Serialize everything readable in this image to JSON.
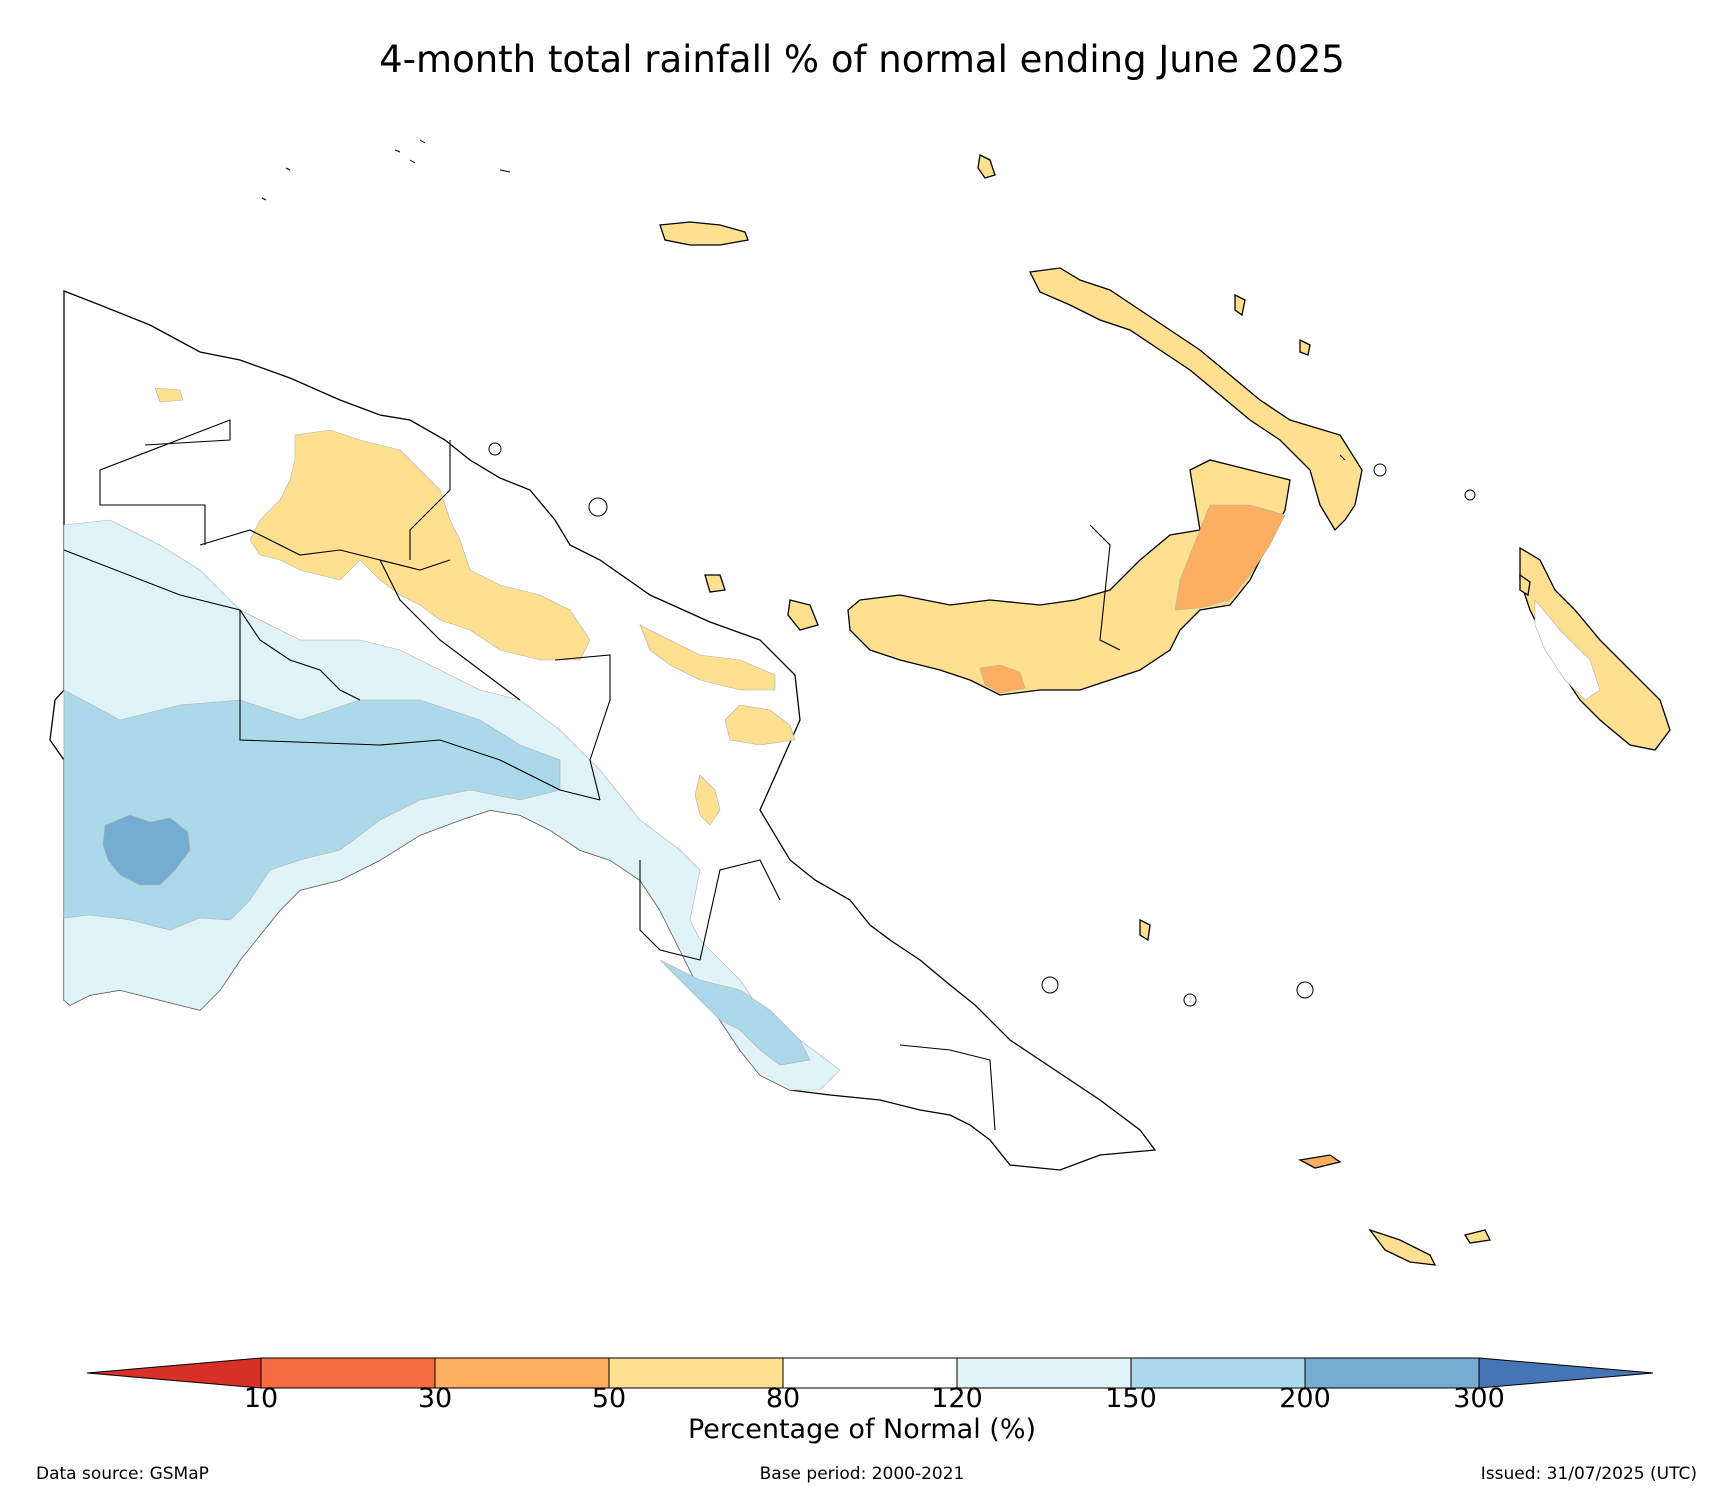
{
  "title": "4-month total rainfall % of normal ending June 2025",
  "colorbar": {
    "label": "Percentage of Normal (%)",
    "ticks": [
      "10",
      "30",
      "50",
      "80",
      "120",
      "150",
      "200",
      "300"
    ],
    "bins": [
      {
        "range": "<10",
        "color": "#d73027"
      },
      {
        "range": "10-30",
        "color": "#f46d43"
      },
      {
        "range": "30-50",
        "color": "#fdae61"
      },
      {
        "range": "50-80",
        "color": "#fee090"
      },
      {
        "range": "80-120",
        "color": "#ffffff"
      },
      {
        "range": "120-150",
        "color": "#e0f3f8"
      },
      {
        "range": "150-200",
        "color": "#abd9e9"
      },
      {
        "range": "200-300",
        "color": "#74add1"
      },
      {
        "range": ">300",
        "color": "#4575b4"
      }
    ]
  },
  "footer": {
    "source": "Data source: GSMaP",
    "base_period": "Base period: 2000-2021",
    "issued": "Issued: 31/07/2025 (UTC)"
  }
}
